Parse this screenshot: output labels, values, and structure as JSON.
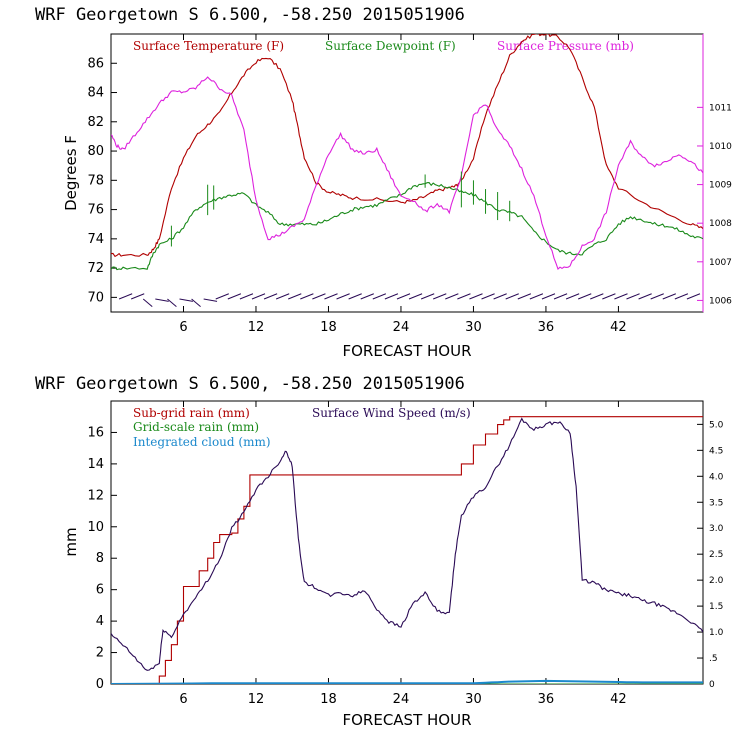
{
  "chart_data": [
    {
      "type": "line",
      "title": "WRF   Georgetown S   6.500, -58.250  2015051906",
      "xlabel": "FORECAST HOUR",
      "ylabel": "Degrees F",
      "xlim": [
        0,
        49
      ],
      "ylim": [
        69,
        88
      ],
      "y2lim": [
        1005.7,
        1012.9
      ],
      "x_ticks": [
        6,
        12,
        18,
        24,
        30,
        36,
        42
      ],
      "y_ticks": [
        70,
        72,
        74,
        76,
        78,
        80,
        82,
        84,
        86
      ],
      "y2_ticks": [
        1006,
        1007,
        1008,
        1009,
        1010,
        1011
      ],
      "legend": [
        "Surface Temperature (F)",
        "Surface Dewpoint (F)",
        "Surface Pressure (mb)"
      ],
      "colors": {
        "temperature": "#b00000",
        "dewpoint": "#1a8a1a",
        "pressure": "#dd22dd",
        "axes": "#000000"
      },
      "series": [
        {
          "name": "Surface Temperature (F)",
          "axis": "left",
          "x": [
            0,
            1,
            3,
            3.5,
            4,
            5,
            6,
            7,
            8,
            9,
            10,
            11,
            12,
            13,
            14,
            15,
            15.5,
            16,
            17,
            18,
            19,
            20,
            22,
            24,
            25,
            26,
            27,
            28,
            28.5,
            29,
            30,
            31,
            32,
            33,
            34,
            35,
            36,
            37,
            38,
            39,
            40,
            41,
            42,
            44,
            46,
            48,
            49
          ],
          "values": [
            72.9,
            72.9,
            72.9,
            73.3,
            74,
            77.5,
            79.5,
            81,
            81.8,
            82.6,
            84,
            85.2,
            86.1,
            86.4,
            85.6,
            83.5,
            81.5,
            79.6,
            77.8,
            77.2,
            77,
            76.8,
            76.7,
            76.5,
            76.6,
            76.9,
            77.3,
            77.5,
            77.6,
            78,
            79.5,
            82.5,
            84.5,
            86.5,
            87.5,
            88,
            88,
            87.8,
            87,
            85,
            83,
            79,
            77.5,
            76.5,
            75.7,
            75,
            74.7
          ]
        },
        {
          "name": "Surface Dewpoint (F)",
          "axis": "left",
          "x": [
            0,
            1,
            3,
            3.5,
            4,
            5,
            6,
            7,
            8,
            9,
            10,
            11,
            12,
            13,
            14,
            15,
            16,
            17,
            18,
            19,
            20,
            21,
            22,
            23,
            24,
            25,
            26,
            27,
            28,
            29,
            30,
            31,
            32,
            33,
            34,
            35,
            36,
            37,
            38,
            39,
            40,
            41,
            42,
            43,
            44,
            45,
            46,
            47,
            48,
            49
          ],
          "values": [
            72,
            72,
            72,
            73,
            73.6,
            74,
            74.8,
            76,
            76.5,
            76.8,
            77,
            77.1,
            76.3,
            75.8,
            75,
            75,
            75,
            75,
            75.3,
            75.7,
            76,
            76.2,
            76.3,
            76.7,
            77,
            77.6,
            77.8,
            77.7,
            77.5,
            77.2,
            77,
            76.5,
            76,
            75.8,
            75.5,
            74.5,
            73.8,
            73.2,
            73,
            73,
            73.6,
            74,
            75,
            75.5,
            75.3,
            75,
            74.9,
            74.6,
            74.2,
            74
          ]
        },
        {
          "name": "Surface Pressure (mb)",
          "axis": "right",
          "x": [
            0,
            0.5,
            1,
            2,
            3,
            4,
            5,
            6,
            7,
            8,
            9,
            10,
            11,
            12,
            13,
            14,
            15,
            16,
            17,
            18,
            19,
            20,
            21,
            22,
            23,
            24,
            25,
            26,
            27,
            28,
            29,
            30,
            31,
            32,
            33,
            34,
            35,
            36,
            37,
            38,
            39,
            40,
            41,
            42,
            43,
            44,
            45,
            46,
            47,
            48,
            49
          ],
          "values": [
            1010.3,
            1010,
            1009.9,
            1010.3,
            1010.7,
            1011.1,
            1011.4,
            1011.4,
            1011.5,
            1011.8,
            1011.5,
            1011.3,
            1010.4,
            1008.6,
            1007.6,
            1007.7,
            1007.9,
            1008.1,
            1009,
            1009.8,
            1010.3,
            1009.9,
            1009.8,
            1009.9,
            1009.3,
            1008.7,
            1008.6,
            1008.3,
            1008.5,
            1008.3,
            1009.2,
            1010.8,
            1011.1,
            1010.4,
            1010,
            1009.4,
            1008.7,
            1007.7,
            1006.8,
            1006.9,
            1007.4,
            1007.6,
            1008.3,
            1009.5,
            1010.1,
            1009.7,
            1009.5,
            1009.6,
            1009.8,
            1009.6,
            1009.3
          ]
        }
      ]
    },
    {
      "type": "line",
      "title": "WRF   Georgetown S   6.500, -58.250  2015051906",
      "xlabel": "FORECAST HOUR",
      "ylabel": "mm",
      "xlim": [
        0,
        49
      ],
      "ylim": [
        0,
        18
      ],
      "y2lim": [
        0,
        5.45
      ],
      "x_ticks": [
        6,
        12,
        18,
        24,
        30,
        36,
        42
      ],
      "y_ticks": [
        0,
        2,
        4,
        6,
        8,
        10,
        12,
        14,
        16
      ],
      "y2_ticks": [
        "0",
        ".5",
        "1.0",
        "1.5",
        "2.0",
        "2.5",
        "3.0",
        "3.5",
        "4.0",
        "4.5",
        "5.0"
      ],
      "legend": [
        "Sub-grid rain (mm)",
        "Grid-scale rain (mm)",
        "Integrated cloud (mm)",
        "Surface Wind Speed (m/s)"
      ],
      "colors": {
        "subgrid": "#b00000",
        "gridscale": "#1a8a1a",
        "cloud": "#1a88cc",
        "wind": "#2a0a55"
      },
      "series": [
        {
          "name": "Sub-grid rain (mm)",
          "axis": "left",
          "step": true,
          "x": [
            0,
            3.8,
            4,
            4.5,
            5,
            5.5,
            6,
            7,
            7.3,
            8,
            8.5,
            9,
            10,
            10.5,
            11,
            11.5,
            14,
            28.5,
            29,
            30,
            31,
            32,
            32.5,
            33,
            35,
            36,
            49
          ],
          "values": [
            0,
            0,
            0.5,
            1.5,
            2.5,
            4,
            6.2,
            6.2,
            7.2,
            8,
            9,
            9.5,
            9.6,
            10.5,
            11.3,
            13.3,
            13.3,
            13.3,
            14,
            15.2,
            15.9,
            16.5,
            16.8,
            17,
            17,
            17,
            17
          ]
        },
        {
          "name": "Grid-scale rain (mm)",
          "axis": "left",
          "step": true,
          "x": [
            0,
            49
          ],
          "values": [
            0,
            0
          ]
        },
        {
          "name": "Integrated cloud (mm)",
          "axis": "left",
          "x": [
            0,
            10,
            20,
            30,
            33,
            36,
            40,
            44,
            49
          ],
          "values": [
            0,
            0.05,
            0.05,
            0.05,
            0.15,
            0.2,
            0.15,
            0.1,
            0.1
          ]
        },
        {
          "name": "Surface Wind Speed (m/s)",
          "axis": "right",
          "x": [
            0,
            1,
            2,
            3,
            4,
            4.3,
            5,
            6,
            7,
            8,
            9,
            10,
            11,
            12,
            13,
            14,
            14.5,
            15,
            15.5,
            16,
            17,
            18,
            19,
            20,
            21,
            22,
            23,
            24,
            25,
            26,
            27,
            28,
            28.5,
            29,
            30,
            31,
            32,
            33,
            34,
            35,
            36,
            37,
            38,
            38.5,
            39,
            40,
            41,
            42,
            43,
            44,
            45,
            46,
            47,
            48,
            49
          ],
          "values": [
            0.95,
            0.75,
            0.5,
            0.25,
            0.4,
            1.05,
            0.9,
            1.35,
            1.65,
            2.0,
            2.4,
            3.0,
            3.3,
            3.75,
            4.0,
            4.3,
            4.5,
            4.2,
            2.8,
            1.95,
            1.85,
            1.7,
            1.75,
            1.7,
            1.8,
            1.45,
            1.2,
            1.1,
            1.55,
            1.75,
            1.4,
            1.35,
            2.5,
            3.25,
            3.6,
            3.8,
            4.2,
            4.6,
            5.1,
            4.9,
            5.0,
            5.05,
            4.85,
            3.8,
            2.0,
            1.95,
            1.8,
            1.75,
            1.7,
            1.6,
            1.55,
            1.45,
            1.35,
            1.2,
            1.0
          ]
        }
      ]
    }
  ]
}
